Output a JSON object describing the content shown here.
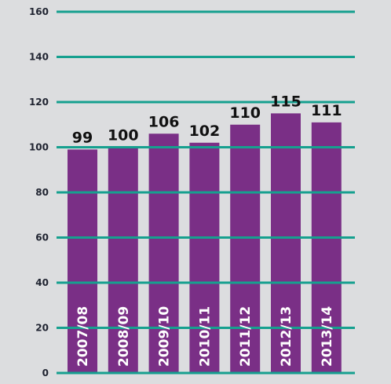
{
  "chart_data": {
    "type": "bar",
    "categories": [
      "2007/08",
      "2008/09",
      "2009/10",
      "2010/11",
      "2011/12",
      "2012/13",
      "2013/14"
    ],
    "values": [
      99,
      100,
      106,
      102,
      110,
      115,
      111
    ],
    "ylim": [
      0,
      160
    ],
    "yticks": [
      0,
      20,
      40,
      60,
      80,
      100,
      120,
      140,
      160
    ],
    "grid": true,
    "title": "",
    "xlabel": "",
    "ylabel": ""
  },
  "colors": {
    "background": "#dcdddf",
    "bar": "#7a2f86",
    "grid": "#16a08f",
    "tick_text": "#1f2330",
    "bar_label_text": "#111111",
    "category_text": "#ffffff"
  }
}
